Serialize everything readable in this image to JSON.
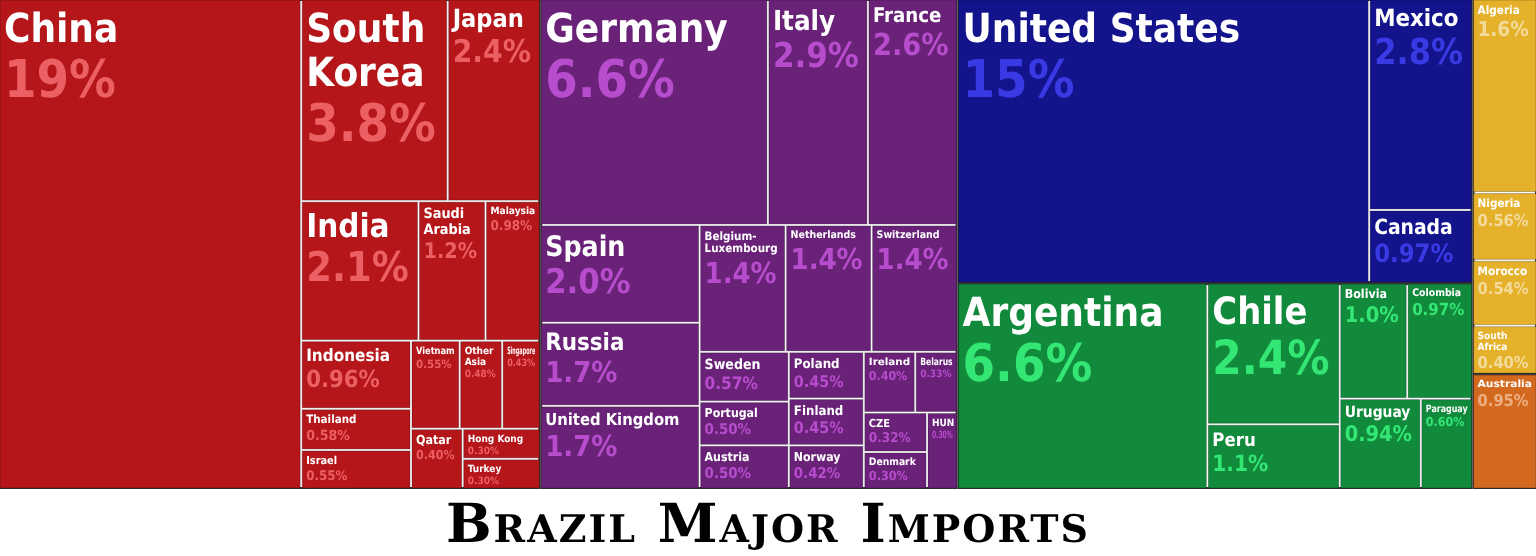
{
  "chart_data": {
    "type": "other",
    "title": "Brazil Major Imports",
    "categories": [
      "China",
      "South Korea",
      "Japan",
      "India",
      "Saudi Arabia",
      "Malaysia",
      "Indonesia",
      "Thailand",
      "Israel",
      "Vietnam",
      "Other Asia",
      "Singapore",
      "Qatar",
      "Hong Kong",
      "Turkey",
      "Germany",
      "Italy",
      "France",
      "Spain",
      "Russia",
      "United Kingdom",
      "Belgium-Luxembourg",
      "Netherlands",
      "Switzerland",
      "Sweden",
      "Portugal",
      "Austria",
      "Poland",
      "Finland",
      "Norway",
      "Ireland",
      "Belarus",
      "CZE",
      "Denmark",
      "HUN",
      "United States",
      "Mexico",
      "Canada",
      "Argentina",
      "Chile",
      "Peru",
      "Bolivia",
      "Colombia",
      "Uruguay",
      "Paraguay",
      "Algeria",
      "Nigeria",
      "Morocco",
      "South Africa",
      "Australia"
    ],
    "values": [
      19,
      3.8,
      2.4,
      2.1,
      1.2,
      0.98,
      0.96,
      0.58,
      0.55,
      0.55,
      0.48,
      0.43,
      0.4,
      0.3,
      0.3,
      6.6,
      2.9,
      2.6,
      2.0,
      1.7,
      1.7,
      1.4,
      1.4,
      1.4,
      0.57,
      0.5,
      0.5,
      0.45,
      0.45,
      0.42,
      0.4,
      0.33,
      0.32,
      0.3,
      0.3,
      15,
      2.8,
      0.97,
      6.6,
      2.4,
      1.1,
      1.0,
      0.97,
      0.94,
      0.6,
      1.6,
      0.56,
      0.54,
      0.4,
      0.95
    ],
    "value_labels": [
      "19%",
      "3.8%",
      "2.4%",
      "2.1%",
      "1.2%",
      "0.98%",
      "0.96%",
      "0.58%",
      "0.55%",
      "0.55%",
      "0.48%",
      "0.43%",
      "0.40%",
      "0.30%",
      "0.30%",
      "6.6%",
      "2.9%",
      "2.6%",
      "2.0%",
      "1.7%",
      "1.7%",
      "1.4%",
      "1.4%",
      "1.4%",
      "0.57%",
      "0.50%",
      "0.50%",
      "0.45%",
      "0.45%",
      "0.42%",
      "0.40%",
      "0.33%",
      "0.32%",
      "0.30%",
      "0.30%",
      "15%",
      "2.8%",
      "0.97%",
      "6.6%",
      "2.4%",
      "1.1%",
      "1.0%",
      "0.97%",
      "0.94%",
      "0.60%",
      "1.6%",
      "0.56%",
      "0.54%",
      "0.40%",
      "0.95%"
    ],
    "colors": [
      "#b5161a",
      "#b5161a",
      "#b5161a",
      "#b5161a",
      "#b5161a",
      "#b5161a",
      "#b5161a",
      "#b5161a",
      "#b5161a",
      "#b5161a",
      "#b5161a",
      "#b5161a",
      "#b5161a",
      "#b5161a",
      "#b5161a",
      "#6a2279",
      "#6a2279",
      "#6a2279",
      "#6a2279",
      "#6a2279",
      "#6a2279",
      "#6a2279",
      "#6a2279",
      "#6a2279",
      "#6a2279",
      "#6a2279",
      "#6a2279",
      "#6a2279",
      "#6a2279",
      "#6a2279",
      "#6a2279",
      "#6a2279",
      "#6a2279",
      "#6a2279",
      "#6a2279",
      "#13138c",
      "#13138c",
      "#13138c",
      "#118a3c",
      "#118a3c",
      "#118a3c",
      "#118a3c",
      "#118a3c",
      "#118a3c",
      "#118a3c",
      "#e6b12a",
      "#e6b12a",
      "#e6b12a",
      "#e6b12a",
      "#d2691e"
    ]
  }
}
